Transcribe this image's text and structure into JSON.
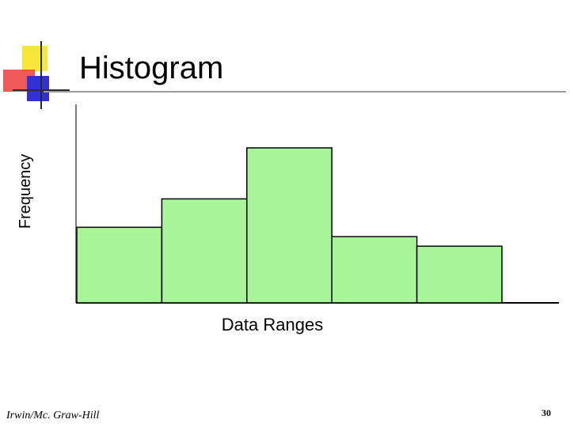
{
  "slide": {
    "title": "Histogram",
    "footer": "Irwin/Mc. Graw-Hill",
    "page_number": "30"
  },
  "chart_data": {
    "type": "bar",
    "xlabel": "Data Ranges",
    "ylabel": "Frequency",
    "categories": [
      "",
      "",
      "",
      "",
      ""
    ],
    "values": [
      4,
      5.5,
      8.2,
      3.5,
      3
    ],
    "ylim": [
      0,
      10.5
    ],
    "grid": false,
    "bar_color": "#a8f498",
    "bar_edge_color": "#000000"
  },
  "logo": {
    "colors": {
      "yellow": "#f6e63a",
      "red": "#ee3b3b",
      "blue": "#3232d2",
      "line": "#2a2a2a"
    }
  }
}
